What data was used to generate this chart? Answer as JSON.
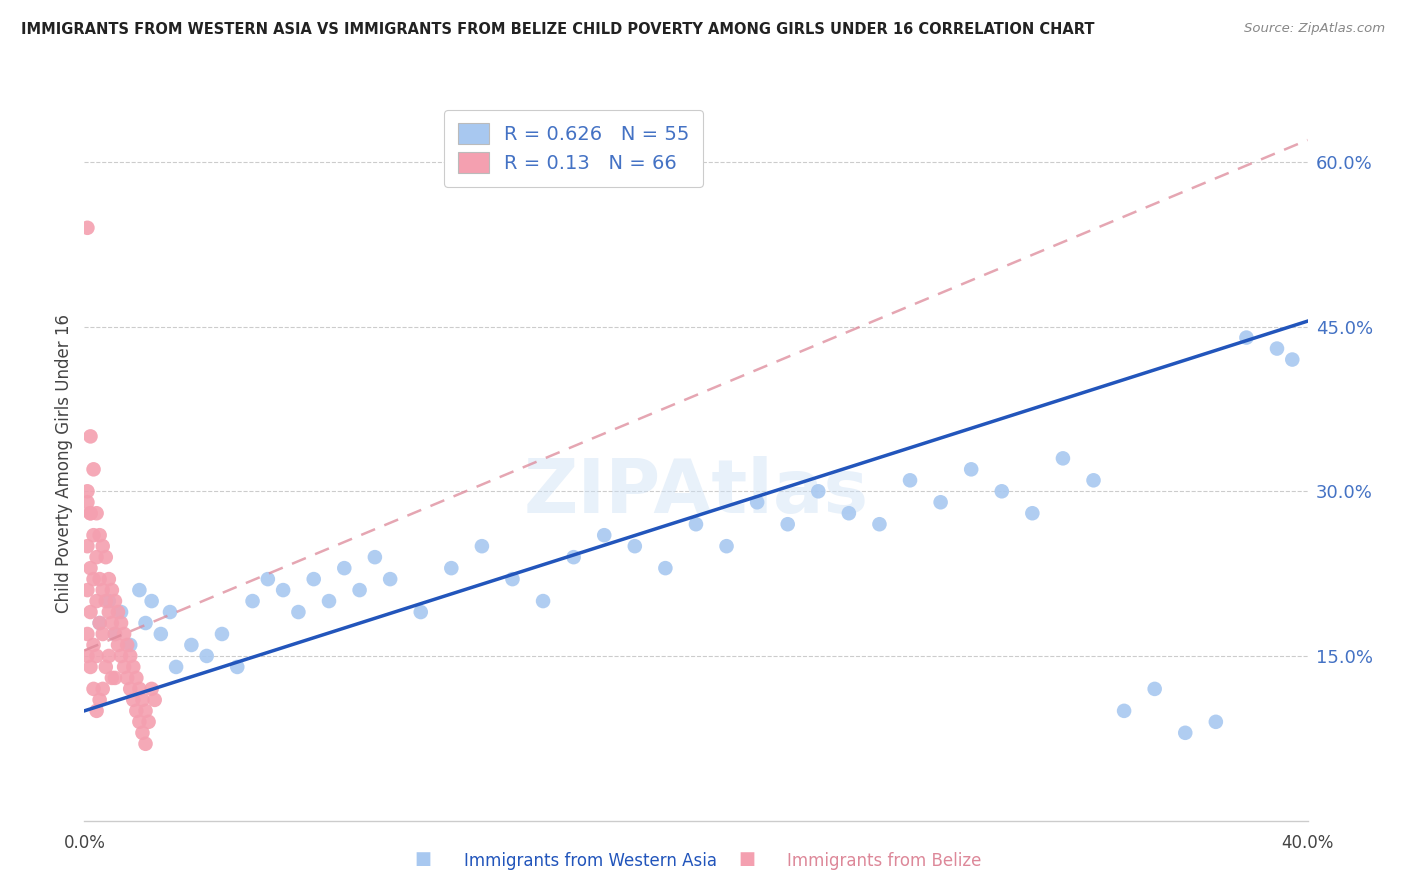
{
  "title": "IMMIGRANTS FROM WESTERN ASIA VS IMMIGRANTS FROM BELIZE CHILD POVERTY AMONG GIRLS UNDER 16 CORRELATION CHART",
  "source": "Source: ZipAtlas.com",
  "ylabel": "Child Poverty Among Girls Under 16",
  "xlabel_blue": "Immigrants from Western Asia",
  "xlabel_pink": "Immigrants from Belize",
  "x_min": 0.0,
  "x_max": 0.4,
  "y_min": 0.0,
  "y_max": 0.65,
  "blue_R": 0.626,
  "blue_N": 55,
  "pink_R": 0.13,
  "pink_N": 66,
  "blue_color": "#a8c8f0",
  "pink_color": "#f4a0b0",
  "blue_line_color": "#2255bb",
  "pink_line_color": "#dd8899",
  "watermark": "ZIPAtlas",
  "blue_line_x0": 0.0,
  "blue_line_y0": 0.1,
  "blue_line_x1": 0.4,
  "blue_line_y1": 0.455,
  "pink_line_x0": 0.0,
  "pink_line_y0": 0.155,
  "pink_line_x1": 0.4,
  "pink_line_y1": 0.62,
  "blue_scatter_x": [
    0.005,
    0.008,
    0.01,
    0.012,
    0.015,
    0.018,
    0.02,
    0.022,
    0.025,
    0.028,
    0.03,
    0.035,
    0.04,
    0.045,
    0.05,
    0.055,
    0.06,
    0.065,
    0.07,
    0.075,
    0.08,
    0.085,
    0.09,
    0.095,
    0.1,
    0.11,
    0.12,
    0.13,
    0.14,
    0.15,
    0.16,
    0.17,
    0.18,
    0.19,
    0.2,
    0.21,
    0.22,
    0.23,
    0.24,
    0.25,
    0.26,
    0.27,
    0.28,
    0.29,
    0.3,
    0.31,
    0.32,
    0.33,
    0.34,
    0.35,
    0.36,
    0.37,
    0.38,
    0.39,
    0.395
  ],
  "blue_scatter_y": [
    0.18,
    0.2,
    0.17,
    0.19,
    0.16,
    0.21,
    0.18,
    0.2,
    0.17,
    0.19,
    0.14,
    0.16,
    0.15,
    0.17,
    0.14,
    0.2,
    0.22,
    0.21,
    0.19,
    0.22,
    0.2,
    0.23,
    0.21,
    0.24,
    0.22,
    0.19,
    0.23,
    0.25,
    0.22,
    0.2,
    0.24,
    0.26,
    0.25,
    0.23,
    0.27,
    0.25,
    0.29,
    0.27,
    0.3,
    0.28,
    0.27,
    0.31,
    0.29,
    0.32,
    0.3,
    0.28,
    0.33,
    0.31,
    0.1,
    0.12,
    0.08,
    0.09,
    0.44,
    0.43,
    0.42
  ],
  "pink_scatter_x": [
    0.001,
    0.001,
    0.001,
    0.001,
    0.001,
    0.001,
    0.002,
    0.002,
    0.002,
    0.002,
    0.002,
    0.003,
    0.003,
    0.003,
    0.003,
    0.004,
    0.004,
    0.004,
    0.004,
    0.005,
    0.005,
    0.005,
    0.006,
    0.006,
    0.006,
    0.007,
    0.007,
    0.007,
    0.008,
    0.008,
    0.008,
    0.009,
    0.009,
    0.009,
    0.01,
    0.01,
    0.01,
    0.011,
    0.011,
    0.012,
    0.012,
    0.013,
    0.013,
    0.014,
    0.014,
    0.015,
    0.015,
    0.016,
    0.016,
    0.017,
    0.017,
    0.018,
    0.018,
    0.019,
    0.019,
    0.02,
    0.02,
    0.021,
    0.022,
    0.023,
    0.001,
    0.002,
    0.003,
    0.004,
    0.005,
    0.006
  ],
  "pink_scatter_y": [
    0.54,
    0.3,
    0.25,
    0.21,
    0.17,
    0.15,
    0.35,
    0.28,
    0.23,
    0.19,
    0.14,
    0.32,
    0.26,
    0.22,
    0.16,
    0.28,
    0.24,
    0.2,
    0.15,
    0.26,
    0.22,
    0.18,
    0.25,
    0.21,
    0.17,
    0.24,
    0.2,
    0.14,
    0.22,
    0.19,
    0.15,
    0.21,
    0.18,
    0.13,
    0.2,
    0.17,
    0.13,
    0.19,
    0.16,
    0.18,
    0.15,
    0.17,
    0.14,
    0.16,
    0.13,
    0.15,
    0.12,
    0.14,
    0.11,
    0.13,
    0.1,
    0.12,
    0.09,
    0.11,
    0.08,
    0.1,
    0.07,
    0.09,
    0.12,
    0.11,
    0.29,
    0.28,
    0.12,
    0.1,
    0.11,
    0.12
  ]
}
